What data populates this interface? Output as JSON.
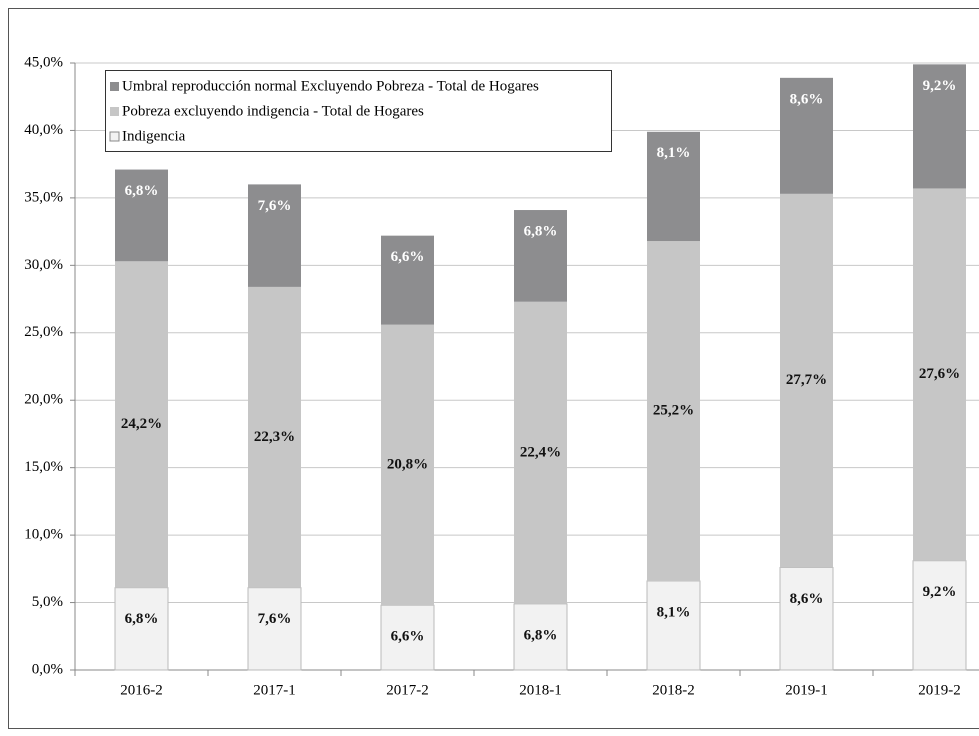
{
  "chart_data": {
    "type": "stacked_bar",
    "categories": [
      "2016-2",
      "2017-1",
      "2017-2",
      "2018-1",
      "2018-2",
      "2019-1",
      "2019-2"
    ],
    "series": [
      {
        "name": "Indigencia",
        "color": "#f2f2f2",
        "values": [
          6.1,
          6.1,
          4.8,
          4.9,
          6.6,
          7.6,
          8.1
        ]
      },
      {
        "name": "Pobreza excluyendo indigencia - Total de Hogares",
        "color": "#c6c6c6",
        "values": [
          24.2,
          22.3,
          20.8,
          22.4,
          25.2,
          27.7,
          27.6
        ],
        "value_labels": [
          "24,2%",
          "22,3%",
          "20,8%",
          "22,4%",
          "25,2%",
          "27,7%",
          "27,6%"
        ]
      },
      {
        "name": "Umbral reproducción normal Excluyendo Pobreza - Total de Hogares",
        "color": "#8d8d8f",
        "values": [
          6.8,
          7.6,
          6.6,
          6.8,
          8.1,
          8.6,
          9.2
        ],
        "value_labels": [
          "6,8%",
          "7,6%",
          "6,6%",
          "6,8%",
          "8,1%",
          "8,6%",
          "9,2%"
        ]
      }
    ],
    "annotations": [
      "6,8%",
      "7,6%",
      "6,6%",
      "6,8%",
      "8,1%",
      "8,6%",
      "9,2%"
    ],
    "ylim": [
      0,
      45
    ],
    "yticks": [
      {
        "value": 0,
        "label": "0,0%"
      },
      {
        "value": 5,
        "label": "5,0%"
      },
      {
        "value": 10,
        "label": "10,0%"
      },
      {
        "value": 15,
        "label": "15,0%"
      },
      {
        "value": 20,
        "label": "20,0%"
      },
      {
        "value": 25,
        "label": "25,0%"
      },
      {
        "value": 30,
        "label": "30,0%"
      },
      {
        "value": 35,
        "label": "35,0%"
      },
      {
        "value": 40,
        "label": "40,0%"
      },
      {
        "value": 45,
        "label": "45,0%"
      }
    ],
    "grid": true
  }
}
